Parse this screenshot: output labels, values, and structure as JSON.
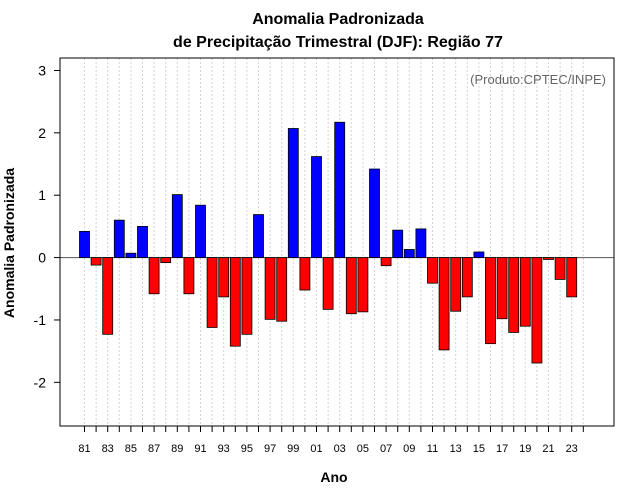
{
  "chart_data": {
    "type": "bar",
    "title": "Anomalia Padronizada",
    "subtitle": "de Precipitação Trimestral (DJF): Região 77",
    "xlabel": "Ano",
    "ylabel": "Anomalia Padronizada",
    "credit": "(Produto:CPTEC/INPE)",
    "ylim": [
      -2.7,
      3.2
    ],
    "yticks": [
      -2,
      -1,
      0,
      1,
      2,
      3
    ],
    "categories": [
      "81",
      "82",
      "83",
      "84",
      "85",
      "86",
      "87",
      "88",
      "89",
      "90",
      "91",
      "92",
      "93",
      "94",
      "95",
      "96",
      "97",
      "98",
      "99",
      "00",
      "01",
      "02",
      "03",
      "04",
      "05",
      "06",
      "07",
      "08",
      "09",
      "10",
      "11",
      "12",
      "13",
      "14",
      "15",
      "16",
      "17",
      "18",
      "19",
      "20",
      "21",
      "22",
      "23",
      "24"
    ],
    "xtick_labels": [
      "81",
      "83",
      "85",
      "87",
      "89",
      "91",
      "93",
      "95",
      "97",
      "99",
      "01",
      "03",
      "05",
      "07",
      "09",
      "11",
      "13",
      "15",
      "17",
      "19",
      "21",
      "23"
    ],
    "values": [
      0.42,
      -0.12,
      -1.23,
      0.6,
      0.07,
      0.5,
      -0.58,
      -0.08,
      1.01,
      -0.58,
      0.84,
      -1.12,
      -0.63,
      -1.42,
      -1.23,
      0.69,
      -0.99,
      -1.02,
      2.07,
      -0.52,
      1.62,
      -0.83,
      2.17,
      -0.9,
      -0.87,
      1.42,
      -0.13,
      0.44,
      0.13,
      0.46,
      -0.41,
      -1.48,
      -0.86,
      -0.63,
      0.09,
      -1.38,
      -0.98,
      -1.2,
      -1.1,
      -1.69,
      -0.03,
      -0.35,
      -0.63,
      0
    ],
    "colors": {
      "positive": "#0000ff",
      "negative": "#ff0000",
      "grid": "#d3d3d3",
      "zero_line": "#555555"
    },
    "grid": true
  }
}
